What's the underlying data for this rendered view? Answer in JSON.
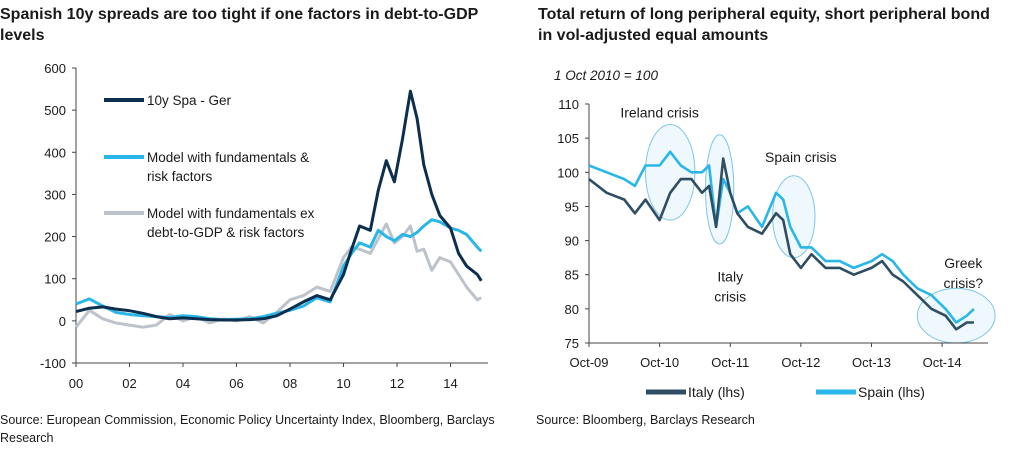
{
  "chart_data": [
    {
      "type": "line",
      "title": "Spanish 10y spreads are too tight if one factors in debt-to-GDP levels",
      "source": "Source: European Commission, Economic Policy Uncertainty Index, Bloomberg, Barclays Research",
      "xlabel": "",
      "ylabel": "",
      "xlim": [
        2000,
        2015.4
      ],
      "ylim": [
        -100,
        600
      ],
      "x_ticks": [
        2000,
        2002,
        2004,
        2006,
        2008,
        2010,
        2012,
        2014
      ],
      "x_tick_labels": [
        "00",
        "02",
        "04",
        "06",
        "08",
        "10",
        "12",
        "14"
      ],
      "y_ticks": [
        -100,
        0,
        100,
        200,
        300,
        400,
        500,
        600
      ],
      "y_tick_labels": [
        "-100",
        "0",
        "100",
        "200",
        "300",
        "400",
        "500",
        "600"
      ],
      "legend_position": "top-left",
      "x": [
        2000.0,
        2000.5,
        2001.0,
        2001.5,
        2002.0,
        2002.5,
        2003.0,
        2003.5,
        2004.0,
        2004.5,
        2005.0,
        2005.5,
        2006.0,
        2006.5,
        2007.0,
        2007.5,
        2008.0,
        2008.5,
        2009.0,
        2009.5,
        2010.0,
        2010.3,
        2010.6,
        2011.0,
        2011.3,
        2011.6,
        2011.9,
        2012.2,
        2012.5,
        2012.75,
        2013.0,
        2013.3,
        2013.6,
        2014.0,
        2014.3,
        2014.6,
        2015.0,
        2015.15
      ],
      "series": [
        {
          "name": "10y Spa - Ger",
          "line_label": "10y Spa - Ger",
          "color": "#0d2f4f",
          "values": [
            22,
            30,
            33,
            28,
            24,
            18,
            10,
            5,
            7,
            5,
            3,
            2,
            2,
            3,
            5,
            12,
            28,
            45,
            60,
            50,
            110,
            170,
            225,
            215,
            310,
            380,
            330,
            430,
            545,
            480,
            370,
            300,
            250,
            220,
            160,
            130,
            110,
            95
          ]
        },
        {
          "name": "Model with fundamentals & risk factors",
          "line_label": "Model with fundamentals &\nrisk factors",
          "color": "#29b6e8",
          "values": [
            40,
            52,
            35,
            20,
            15,
            12,
            10,
            8,
            12,
            10,
            5,
            3,
            4,
            5,
            10,
            18,
            25,
            35,
            55,
            45,
            130,
            160,
            185,
            175,
            215,
            200,
            190,
            205,
            200,
            210,
            225,
            240,
            235,
            220,
            215,
            205,
            175,
            165
          ]
        },
        {
          "name": "Model with fundamentals ex debt-to-GDP & risk factors",
          "line_label": "Model with fundamentals ex\ndebt-to-GDP & risk factors",
          "color": "#bcc3ca",
          "values": [
            -15,
            25,
            5,
            -5,
            -10,
            -15,
            -10,
            15,
            0,
            10,
            -5,
            5,
            0,
            10,
            -5,
            20,
            50,
            60,
            80,
            70,
            150,
            175,
            170,
            160,
            195,
            230,
            185,
            200,
            225,
            165,
            170,
            120,
            150,
            140,
            110,
            80,
            50,
            55
          ]
        }
      ]
    },
    {
      "type": "line",
      "title": "Total return of long peripheral equity, short peripheral bond in vol-adjusted equal amounts",
      "subtitle": "1 Oct 2010 = 100",
      "source": "Source: Bloomberg, Barclays Research",
      "xlabel": "",
      "ylabel": "",
      "xlim": [
        2009.75,
        2015.4
      ],
      "ylim": [
        75,
        110
      ],
      "x_ticks": [
        2009.75,
        2010.75,
        2011.75,
        2012.75,
        2013.75,
        2014.75
      ],
      "x_tick_labels": [
        "Oct-09",
        "Oct-10",
        "Oct-11",
        "Oct-12",
        "Oct-13",
        "Oct-14"
      ],
      "y_ticks": [
        75,
        80,
        85,
        90,
        95,
        100,
        105,
        110
      ],
      "y_tick_labels": [
        "75",
        "80",
        "85",
        "90",
        "95",
        "100",
        "105",
        "110"
      ],
      "legend_position": "bottom",
      "x": [
        2009.75,
        2010.0,
        2010.25,
        2010.4,
        2010.55,
        2010.75,
        2010.9,
        2011.05,
        2011.2,
        2011.35,
        2011.45,
        2011.55,
        2011.65,
        2011.75,
        2011.85,
        2012.0,
        2012.2,
        2012.4,
        2012.5,
        2012.6,
        2012.75,
        2012.9,
        2013.1,
        2013.3,
        2013.5,
        2013.75,
        2013.9,
        2014.05,
        2014.2,
        2014.4,
        2014.6,
        2014.8,
        2014.95,
        2015.1,
        2015.2
      ],
      "series": [
        {
          "name": "Italy (lhs)",
          "color": "#2f4e63",
          "values": [
            99,
            97,
            96,
            94,
            96,
            93,
            97,
            99,
            99,
            97,
            98,
            92,
            102,
            97,
            94,
            92,
            91,
            94,
            93,
            88,
            86,
            88,
            86,
            86,
            85,
            86,
            87,
            85,
            84,
            82,
            80,
            79,
            77,
            78,
            78
          ]
        },
        {
          "name": "Spain (lhs)",
          "color": "#29b6e8",
          "values": [
            101,
            100,
            99,
            98,
            101,
            101,
            103,
            101,
            100,
            100,
            101,
            92,
            99,
            97,
            94,
            95,
            92,
            97,
            96,
            92,
            89,
            89,
            87,
            87,
            86,
            87,
            88,
            87,
            85,
            83,
            82,
            80,
            78,
            79,
            80
          ]
        }
      ],
      "annotations": [
        {
          "label": "Ireland crisis",
          "x": 2010.75,
          "y": 108
        },
        {
          "label": "Italy\ncrisis",
          "x": 2011.75,
          "y": 84
        },
        {
          "label": "Spain crisis",
          "x": 2012.75,
          "y": 101.5
        },
        {
          "label": "Greek\ncrisis?",
          "x": 2015.05,
          "y": 86
        }
      ],
      "highlight_ellipses": [
        {
          "cx": 2010.9,
          "cy": 100,
          "rx": 0.35,
          "ry": 7
        },
        {
          "cx": 2011.6,
          "cy": 97.5,
          "rx": 0.2,
          "ry": 8
        },
        {
          "cx": 2012.65,
          "cy": 93.5,
          "rx": 0.3,
          "ry": 6
        },
        {
          "cx": 2014.95,
          "cy": 79,
          "rx": 0.55,
          "ry": 4
        }
      ]
    }
  ]
}
